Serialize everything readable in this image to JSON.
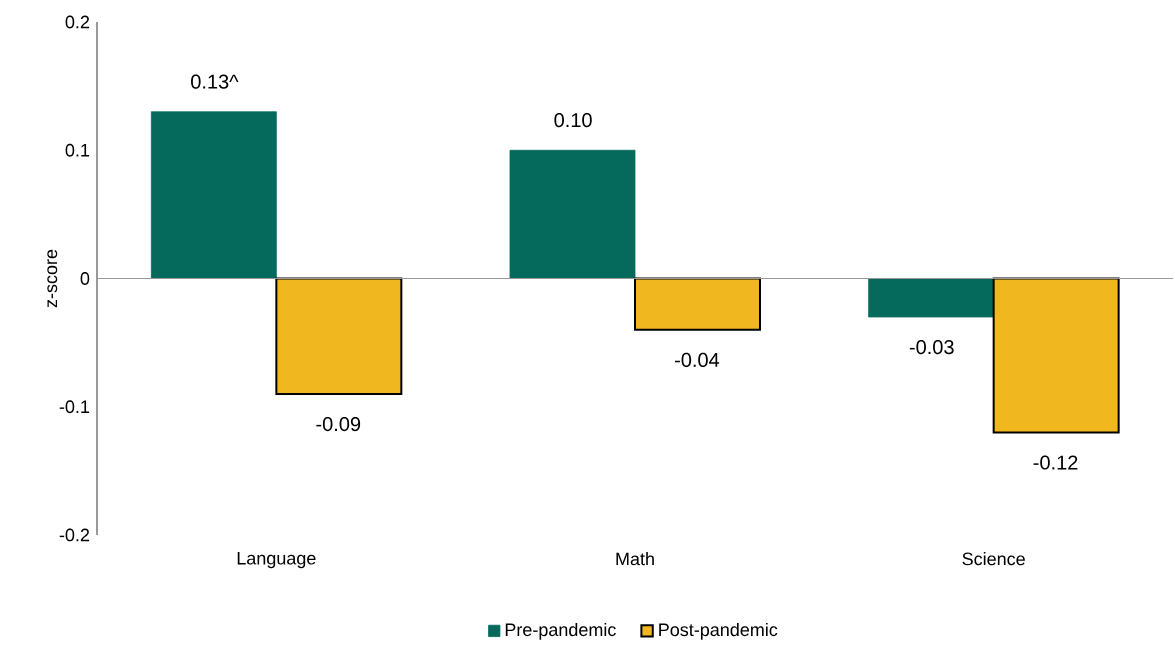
{
  "chart_data": {
    "type": "bar",
    "ylabel": "z-score",
    "categories": [
      "Language",
      "Math",
      "Science"
    ],
    "series": [
      {
        "name": "Pre-pandemic",
        "color": "#056a5c",
        "values": [
          0.13,
          0.1,
          -0.03
        ],
        "value_labels": [
          "0.13^",
          "0.10",
          "-0.03"
        ]
      },
      {
        "name": "Post-pandemic",
        "color": "#f0b71f",
        "values": [
          -0.09,
          -0.04,
          -0.12
        ],
        "value_labels": [
          "-0.09",
          "-0.04",
          "-0.12"
        ]
      }
    ],
    "ylim": [
      -0.2,
      0.2
    ],
    "yticks": [
      -0.2,
      -0.1,
      0,
      0.1,
      0.2
    ],
    "legend": "bottom"
  }
}
